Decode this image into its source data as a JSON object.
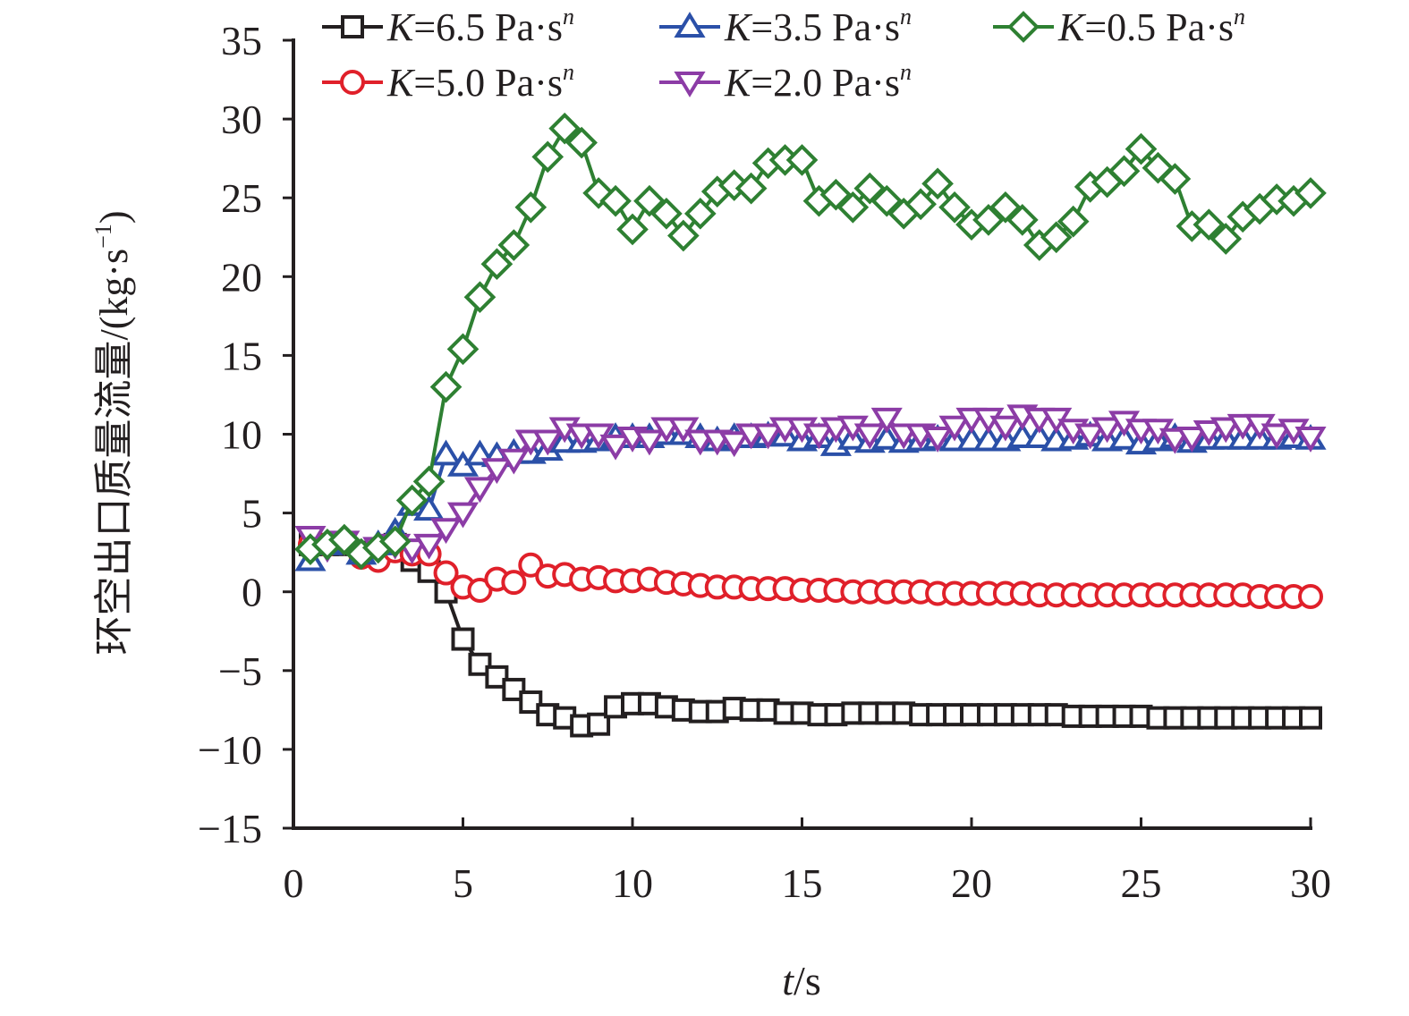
{
  "chart_data": {
    "type": "line",
    "title": "",
    "xlabel_var": "t",
    "xlabel_unit": "/s",
    "ylabel_main": "环空出口质量流量/(kg·s",
    "ylabel_sup": "−1",
    "ylabel_close": ")",
    "xlim": [
      0,
      30
    ],
    "ylim": [
      -15,
      35
    ],
    "xticks": [
      0,
      5,
      10,
      15,
      20,
      25,
      30
    ],
    "yticks": [
      -15,
      -10,
      -5,
      0,
      5,
      10,
      15,
      20,
      25,
      30,
      35
    ],
    "xtick_labels": [
      "0",
      "5",
      "10",
      "15",
      "20",
      "25",
      "30"
    ],
    "ytick_labels": [
      "−15",
      "−10",
      "−5",
      "0",
      "5",
      "10",
      "15",
      "20",
      "25",
      "30",
      "35"
    ],
    "grid": false,
    "legend_position": "top",
    "x": [
      0.5,
      1.0,
      1.5,
      2.0,
      2.5,
      3.0,
      3.5,
      4.0,
      4.5,
      5.0,
      5.5,
      6.0,
      6.5,
      7.0,
      7.5,
      8.0,
      8.5,
      9.0,
      9.5,
      10.0,
      10.5,
      11.0,
      11.5,
      12.0,
      12.5,
      13.0,
      13.5,
      14.0,
      14.5,
      15.0,
      15.5,
      16.0,
      16.5,
      17.0,
      17.5,
      18.0,
      18.5,
      19.0,
      19.5,
      20.0,
      20.5,
      21.0,
      21.5,
      22.0,
      22.5,
      23.0,
      23.5,
      24.0,
      24.5,
      25.0,
      25.5,
      26.0,
      26.5,
      27.0,
      27.5,
      28.0,
      28.5,
      29.0,
      29.5,
      30.0
    ],
    "series": [
      {
        "name": "K=6.5 Pa·s^n",
        "legend_k": "K",
        "legend_value": "=6.5 Pa·s",
        "legend_sup": "n",
        "color": "#231f20",
        "marker": "square",
        "values": [
          3.0,
          3.0,
          3.0,
          2.5,
          2.5,
          3.0,
          2.0,
          1.3,
          0.0,
          -3.0,
          -4.6,
          -5.4,
          -6.2,
          -7.0,
          -7.8,
          -8.0,
          -8.5,
          -8.4,
          -7.3,
          -7.1,
          -7.1,
          -7.3,
          -7.5,
          -7.6,
          -7.6,
          -7.4,
          -7.5,
          -7.5,
          -7.7,
          -7.7,
          -7.8,
          -7.8,
          -7.7,
          -7.7,
          -7.7,
          -7.7,
          -7.8,
          -7.8,
          -7.8,
          -7.8,
          -7.8,
          -7.8,
          -7.8,
          -7.8,
          -7.8,
          -7.9,
          -7.9,
          -7.9,
          -7.9,
          -7.9,
          -8.0,
          -8.0,
          -8.0,
          -8.0,
          -8.0,
          -8.0,
          -8.0,
          -8.0,
          -8.0,
          -8.0
        ]
      },
      {
        "name": "K=5.0 Pa·s^n",
        "legend_k": "K",
        "legend_value": "=5.0 Pa·s",
        "legend_sup": "n",
        "color": "#e0202a",
        "marker": "circle",
        "values": [
          3.0,
          3.0,
          3.2,
          2.2,
          2.0,
          2.6,
          2.4,
          2.4,
          1.2,
          0.3,
          0.1,
          0.8,
          0.6,
          1.7,
          1.0,
          1.1,
          0.8,
          0.9,
          0.7,
          0.7,
          0.8,
          0.6,
          0.5,
          0.4,
          0.3,
          0.3,
          0.2,
          0.2,
          0.2,
          0.1,
          0.1,
          0.1,
          0.0,
          0.0,
          0.0,
          0.0,
          0.0,
          -0.1,
          -0.1,
          -0.1,
          -0.1,
          -0.1,
          -0.1,
          -0.2,
          -0.2,
          -0.2,
          -0.2,
          -0.2,
          -0.2,
          -0.2,
          -0.2,
          -0.2,
          -0.2,
          -0.2,
          -0.2,
          -0.2,
          -0.3,
          -0.3,
          -0.3,
          -0.3
        ]
      },
      {
        "name": "K=3.5 Pa·s^n",
        "legend_k": "K",
        "legend_value": "=3.5 Pa·s",
        "legend_sup": "n",
        "color": "#2b50a8",
        "marker": "triangle-up",
        "values": [
          2.0,
          3.0,
          3.2,
          2.4,
          3.0,
          3.8,
          5.5,
          5.2,
          8.7,
          8.0,
          8.7,
          8.6,
          8.8,
          8.8,
          9.0,
          9.5,
          9.5,
          9.6,
          9.8,
          9.8,
          9.8,
          10.0,
          10.0,
          9.8,
          9.6,
          9.8,
          9.8,
          9.9,
          9.9,
          9.6,
          9.8,
          9.3,
          9.7,
          9.5,
          9.7,
          9.5,
          9.6,
          9.7,
          9.6,
          9.6,
          9.6,
          9.6,
          9.8,
          9.8,
          9.6,
          9.7,
          9.9,
          9.6,
          9.7,
          9.4,
          9.6,
          9.8,
          9.5,
          9.7,
          9.7,
          9.7,
          9.7,
          9.7,
          9.8,
          9.7
        ]
      },
      {
        "name": "K=2.0 Pa·s^n",
        "legend_k": "K",
        "legend_value": "=2.0 Pa·s",
        "legend_sup": "n",
        "color": "#8c3ca6",
        "marker": "triangle-down",
        "values": [
          3.5,
          2.8,
          3.2,
          2.4,
          2.8,
          3.0,
          2.7,
          3.0,
          4.0,
          5.0,
          6.6,
          7.8,
          8.4,
          9.6,
          9.6,
          10.4,
          10.0,
          10.0,
          9.3,
          9.8,
          9.6,
          10.4,
          10.4,
          9.6,
          9.6,
          9.5,
          10.0,
          10.0,
          10.4,
          10.4,
          10.0,
          10.4,
          10.5,
          10.0,
          11.0,
          10.0,
          10.0,
          9.8,
          10.5,
          11.0,
          11.0,
          10.5,
          11.2,
          11.0,
          11.0,
          10.3,
          10.0,
          10.4,
          10.8,
          10.3,
          10.3,
          9.7,
          9.8,
          10.2,
          10.4,
          10.6,
          10.6,
          10.0,
          10.3,
          9.8
        ]
      },
      {
        "name": "K=0.5 Pa·s^n",
        "legend_k": "K",
        "legend_value": "=0.5 Pa·s",
        "legend_sup": "n",
        "color": "#2e8032",
        "marker": "diamond",
        "values": [
          2.7,
          3.0,
          3.3,
          2.4,
          2.8,
          3.2,
          5.8,
          7.0,
          13.0,
          15.4,
          18.7,
          20.8,
          22.0,
          24.4,
          27.6,
          29.4,
          28.5,
          25.3,
          24.8,
          23.0,
          24.8,
          24.0,
          22.6,
          24.0,
          25.4,
          25.8,
          25.6,
          27.2,
          27.4,
          27.4,
          24.8,
          25.2,
          24.4,
          25.6,
          24.8,
          24.0,
          24.6,
          25.9,
          24.4,
          23.3,
          23.6,
          24.4,
          23.6,
          22.0,
          22.5,
          23.5,
          25.7,
          26.0,
          26.7,
          28.1,
          26.9,
          26.2,
          23.2,
          23.3,
          22.4,
          23.8,
          24.3,
          24.9,
          24.8,
          25.3
        ]
      }
    ]
  }
}
